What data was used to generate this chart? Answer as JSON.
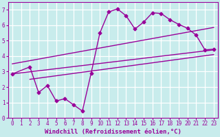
{
  "bg_color": "#c8ecec",
  "grid_color": "#ffffff",
  "line_color": "#990099",
  "markersize": 2.5,
  "linewidth": 1.0,
  "xlabel": "Windchill (Refroidissement éolien,°C)",
  "xlabel_fontsize": 6.5,
  "tick_fontsize": 5.5,
  "xlim": [
    -0.5,
    23.5
  ],
  "ylim": [
    0,
    7.5
  ],
  "xticks": [
    0,
    1,
    2,
    3,
    4,
    5,
    6,
    7,
    8,
    9,
    10,
    11,
    12,
    13,
    14,
    15,
    16,
    17,
    18,
    19,
    20,
    21,
    22,
    23
  ],
  "yticks": [
    0,
    1,
    2,
    3,
    4,
    5,
    6,
    7
  ],
  "line1_x": [
    0,
    2,
    3,
    4,
    5,
    6,
    7,
    8,
    9,
    10,
    11,
    12,
    13,
    14,
    15,
    16,
    17,
    18,
    19,
    20,
    21,
    22,
    23
  ],
  "line1_y": [
    2.85,
    3.3,
    1.65,
    2.1,
    1.1,
    1.25,
    0.85,
    0.45,
    2.9,
    5.5,
    6.85,
    7.05,
    6.6,
    5.75,
    6.2,
    6.8,
    6.75,
    6.35,
    6.05,
    5.8,
    5.35,
    4.4,
    4.45
  ],
  "line2_x": [
    0,
    23
  ],
  "line2_y": [
    3.5,
    5.85
  ],
  "line3_x": [
    0,
    23
  ],
  "line3_y": [
    2.85,
    4.4
  ],
  "line4_x": [
    2,
    23
  ],
  "line4_y": [
    2.5,
    4.1
  ]
}
